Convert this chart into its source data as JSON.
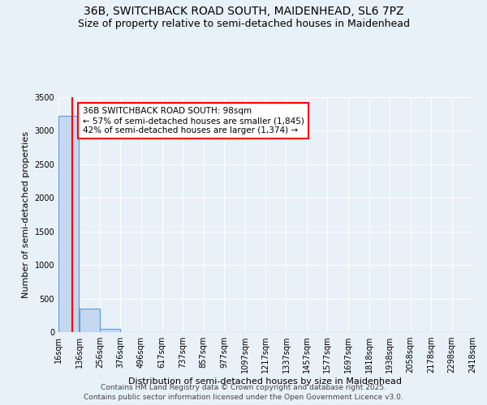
{
  "title": "36B, SWITCHBACK ROAD SOUTH, MAIDENHEAD, SL6 7PZ",
  "subtitle": "Size of property relative to semi-detached houses in Maidenhead",
  "xlabel": "Distribution of semi-detached houses by size in Maidenhead",
  "ylabel": "Number of semi-detached properties",
  "footer_line1": "Contains HM Land Registry data © Crown copyright and database right 2025.",
  "footer_line2": "Contains public sector information licensed under the Open Government Licence v3.0.",
  "bar_edges": [
    16,
    136,
    256,
    376,
    496,
    617,
    737,
    857,
    977,
    1097,
    1217,
    1337,
    1457,
    1577,
    1697,
    1818,
    1938,
    2058,
    2178,
    2298,
    2418
  ],
  "bar_labels": [
    "16sqm",
    "136sqm",
    "256sqm",
    "376sqm",
    "496sqm",
    "617sqm",
    "737sqm",
    "857sqm",
    "977sqm",
    "1097sqm",
    "1217sqm",
    "1337sqm",
    "1457sqm",
    "1577sqm",
    "1697sqm",
    "1818sqm",
    "1938sqm",
    "2058sqm",
    "2178sqm",
    "2298sqm",
    "2418sqm"
  ],
  "bar_values": [
    3219,
    350,
    50,
    5,
    2,
    1,
    1,
    0,
    0,
    0,
    0,
    0,
    0,
    0,
    0,
    0,
    0,
    0,
    0,
    0
  ],
  "bar_color": "#c5d8f0",
  "bar_edge_color": "#5a9bd5",
  "red_line_x": 98,
  "annotation_title": "36B SWITCHBACK ROAD SOUTH: 98sqm",
  "annotation_line1": "← 57% of semi-detached houses are smaller (1,845)",
  "annotation_line2": "42% of semi-detached houses are larger (1,374) →",
  "annotation_box_color": "white",
  "annotation_box_edge": "red",
  "red_line_color": "red",
  "ylim": [
    0,
    3500
  ],
  "yticks": [
    0,
    500,
    1000,
    1500,
    2000,
    2500,
    3000,
    3500
  ],
  "background_color": "#e8f0f8",
  "grid_color": "white",
  "title_fontsize": 10,
  "subtitle_fontsize": 9,
  "axis_label_fontsize": 8,
  "tick_fontsize": 7,
  "annotation_fontsize": 7.5,
  "footer_fontsize": 6.5
}
